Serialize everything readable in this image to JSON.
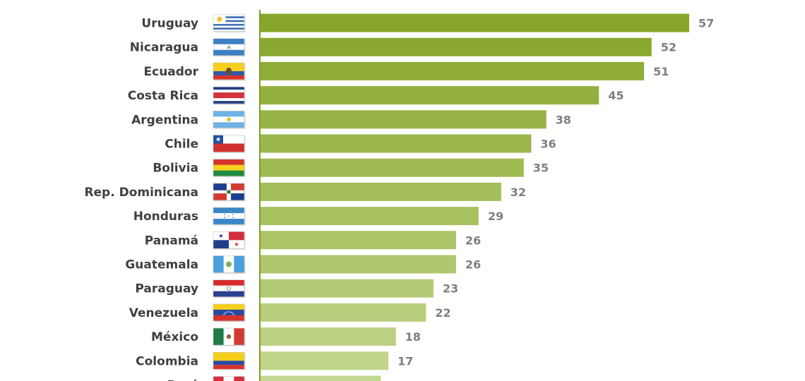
{
  "chart_data": {
    "type": "bar",
    "orientation": "horizontal",
    "categories": [
      "Uruguay",
      "Nicaragua",
      "Ecuador",
      "Costa Rica",
      "Argentina",
      "Chile",
      "Bolivia",
      "Rep. Dominicana",
      "Honduras",
      "Panamá",
      "Guatemala",
      "Paraguay",
      "Venezuela",
      "México",
      "Colombia",
      "Perú"
    ],
    "values": [
      57,
      52,
      51,
      45,
      38,
      36,
      35,
      32,
      29,
      26,
      26,
      23,
      22,
      18,
      17,
      16
    ],
    "flag_icons": [
      "flag-uruguay-icon",
      "flag-nicaragua-icon",
      "flag-ecuador-icon",
      "flag-costa-rica-icon",
      "flag-argentina-icon",
      "flag-chile-icon",
      "flag-bolivia-icon",
      "flag-dominican-republic-icon",
      "flag-honduras-icon",
      "flag-panama-icon",
      "flag-guatemala-icon",
      "flag-paraguay-icon",
      "flag-venezuela-icon",
      "flag-mexico-icon",
      "flag-colombia-icon",
      "flag-peru-icon"
    ],
    "xlim": [
      0,
      57
    ],
    "grid": false,
    "legend": "none",
    "colors": {
      "bar_darkest": "#87a629",
      "bar_lightest": "#c4d891",
      "axis": "#7aa02a",
      "label": "#404040",
      "value": "#7f7f7f"
    }
  }
}
